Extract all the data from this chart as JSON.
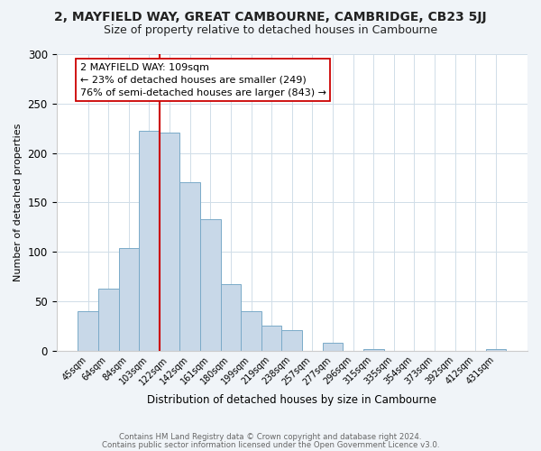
{
  "title": "2, MAYFIELD WAY, GREAT CAMBOURNE, CAMBRIDGE, CB23 5JJ",
  "subtitle": "Size of property relative to detached houses in Cambourne",
  "xlabel": "Distribution of detached houses by size in Cambourne",
  "ylabel": "Number of detached properties",
  "bar_labels": [
    "45sqm",
    "64sqm",
    "84sqm",
    "103sqm",
    "122sqm",
    "142sqm",
    "161sqm",
    "180sqm",
    "199sqm",
    "219sqm",
    "238sqm",
    "257sqm",
    "277sqm",
    "296sqm",
    "315sqm",
    "335sqm",
    "354sqm",
    "373sqm",
    "392sqm",
    "412sqm",
    "431sqm"
  ],
  "bar_values": [
    40,
    63,
    104,
    222,
    221,
    170,
    133,
    67,
    40,
    25,
    21,
    0,
    8,
    0,
    2,
    0,
    0,
    0,
    0,
    0,
    2
  ],
  "bar_color": "#c8d8e8",
  "bar_edge_color": "#7aaac8",
  "vline_color": "#cc0000",
  "vline_x_index": 3.5,
  "annotation_title": "2 MAYFIELD WAY: 109sqm",
  "annotation_line1": "← 23% of detached houses are smaller (249)",
  "annotation_line2": "76% of semi-detached houses are larger (843) →",
  "annotation_box_color": "#ffffff",
  "annotation_box_edge": "#cc0000",
  "ylim": [
    0,
    300
  ],
  "yticks": [
    0,
    50,
    100,
    150,
    200,
    250,
    300
  ],
  "footer1": "Contains HM Land Registry data © Crown copyright and database right 2024.",
  "footer2": "Contains public sector information licensed under the Open Government Licence v3.0.",
  "bg_color": "#f0f4f8",
  "plot_bg_color": "#ffffff",
  "title_fontsize": 10,
  "subtitle_fontsize": 9,
  "grid_color": "#d0dde8"
}
